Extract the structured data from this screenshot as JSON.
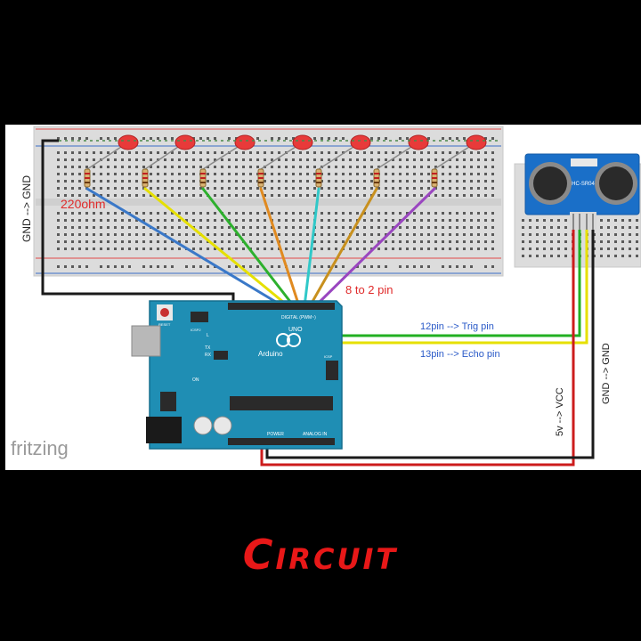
{
  "labels": {
    "gnd_left": "GND --> GND",
    "resistor": "220ohm",
    "pins_range": "8 to 2 pin",
    "trig": "12pin --> Trig pin",
    "echo": "13pin --> Echo pin",
    "vcc": "5v --> VCC",
    "gnd_right": "GND --> GND",
    "fritzing": "fritzing",
    "arduino_board": "Arduino",
    "uno": "UNO",
    "sensor_model": "HC-SR04",
    "digital": "DIGITAL (PWM~)",
    "power": "POWER",
    "analog": "ANALOG IN",
    "reset": "RESET",
    "icsp": "ICSP",
    "icsp2": "ICSP2",
    "tx": "TX",
    "rx": "RX",
    "l": "L",
    "on": "ON"
  },
  "caption": "Circuit",
  "colors": {
    "led_wires": [
      "#3a78c8",
      "#e6e000",
      "#2db02d",
      "#e08a20",
      "#30c8c8",
      "#c8901e",
      "#9a46c0"
    ],
    "trig_wire": "#22b022",
    "echo_wire": "#e6e000",
    "vcc_wire": "#cc1c1c",
    "gnd_wire": "#1a1a1a",
    "board": "#1f8eb4",
    "sensor": "#1a6fc8",
    "led": "#e83a3a",
    "caption": "#e81818"
  }
}
